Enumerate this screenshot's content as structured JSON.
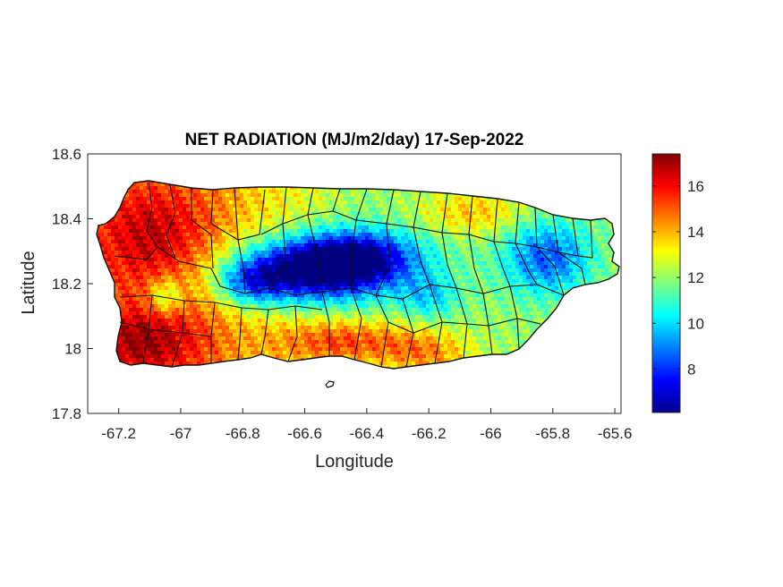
{
  "figure": {
    "title": "NET RADIATION (MJ/m2/day) 17-Sep-2022",
    "xlabel": "Longitude",
    "ylabel": "Latitude"
  },
  "chart_data": {
    "type": "heatmap",
    "title": "NET RADIATION (MJ/m2/day) 17-Sep-2022",
    "xlabel": "Longitude",
    "ylabel": "Latitude",
    "xlim": [
      -67.3,
      -65.58
    ],
    "ylim": [
      17.8,
      18.6
    ],
    "xticks": [
      -67.2,
      -67,
      -66.8,
      -66.6,
      -66.4,
      -66.2,
      -66,
      -65.8,
      -65.6
    ],
    "xtick_labels": [
      "-67.2",
      "-67",
      "-66.8",
      "-66.6",
      "-66.4",
      "-66.2",
      "-66",
      "-65.8",
      "-65.6"
    ],
    "yticks": [
      17.8,
      18,
      18.2,
      18.4,
      18.6
    ],
    "ytick_labels": [
      "17.8",
      "18",
      "18.2",
      "18.4",
      "18.6"
    ],
    "colorbar": {
      "colormap": "jet",
      "range": [
        6.1,
        17.4
      ],
      "ticks": [
        8,
        10,
        12,
        14,
        16
      ],
      "tick_labels": [
        "8",
        "10",
        "12",
        "14",
        "16"
      ]
    },
    "regions": [
      {
        "name": "west",
        "approx_value": 15.5
      },
      {
        "name": "south coast",
        "approx_value": 16
      },
      {
        "name": "central interior",
        "approx_value": 8
      },
      {
        "name": "north coast",
        "approx_value": 12.5
      },
      {
        "name": "east",
        "approx_value": 10
      }
    ]
  }
}
